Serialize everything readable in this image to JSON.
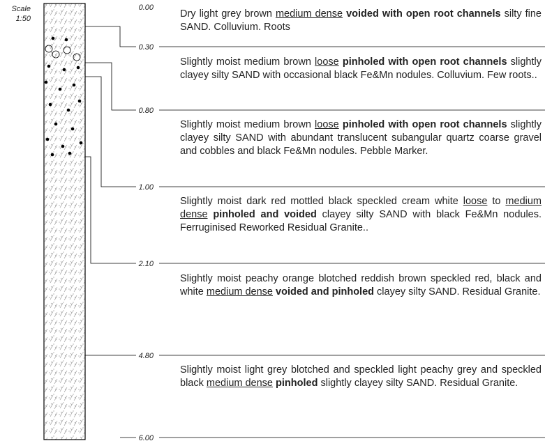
{
  "scale": {
    "label": "Scale",
    "ratio": "1:50"
  },
  "depths": [
    "0.00",
    "0.30",
    "0.80",
    "1.00",
    "2.10",
    "4.80",
    "6.00"
  ],
  "layers": [
    {
      "segments": [
        {
          "text": "Dry light grey brown ",
          "style": "normal"
        },
        {
          "text": "medium dense",
          "style": "underline"
        },
        {
          "text": " voided with open root channels",
          "style": "bold"
        },
        {
          "text": " silty fine SAND. Colluvium. Roots",
          "style": "normal"
        }
      ]
    },
    {
      "segments": [
        {
          "text": "Slightly moist medium brown ",
          "style": "normal"
        },
        {
          "text": "loose",
          "style": "underline"
        },
        {
          "text": " pinholed with open root channels",
          "style": "bold"
        },
        {
          "text": " slightly clayey silty SAND with occasional black Fe&Mn nodules. Colluvium. Few roots..",
          "style": "normal"
        }
      ]
    },
    {
      "segments": [
        {
          "text": "Slightly moist medium brown ",
          "style": "normal"
        },
        {
          "text": "loose",
          "style": "underline"
        },
        {
          "text": " pinholed with open root channels",
          "style": "bold"
        },
        {
          "text": " slightly clayey silty SAND with abundant translucent subangular quartz coarse gravel and cobbles and black Fe&Mn nodules. Pebble Marker.",
          "style": "normal"
        }
      ]
    },
    {
      "segments": [
        {
          "text": "Slightly moist dark red mottled black speckled cream white ",
          "style": "normal"
        },
        {
          "text": "loose",
          "style": "underline"
        },
        {
          "text": " to ",
          "style": "normal"
        },
        {
          "text": "medium dense",
          "style": "underline"
        },
        {
          "text": " pinholed and voided",
          "style": "bold"
        },
        {
          "text": " clayey silty SAND with black Fe&Mn nodules. Ferruginised Reworked Residual Granite..",
          "style": "normal"
        }
      ]
    },
    {
      "segments": [
        {
          "text": "Slightly moist peachy orange blotched reddish brown speckled red, black and white ",
          "style": "normal"
        },
        {
          "text": "medium dense",
          "style": "underline"
        },
        {
          "text": " voided and pinholed",
          "style": "bold"
        },
        {
          "text": " clayey silty SAND. Residual Granite.",
          "style": "normal"
        }
      ]
    },
    {
      "segments": [
        {
          "text": "Slightly moist light grey blotched and speckled light peachy grey and speckled black ",
          "style": "normal"
        },
        {
          "text": "medium dense",
          "style": "underline"
        },
        {
          "text": " pinholed",
          "style": "bold"
        },
        {
          "text": " slightly clayey silty SAND. Residual Granite.",
          "style": "normal"
        }
      ]
    }
  ]
}
